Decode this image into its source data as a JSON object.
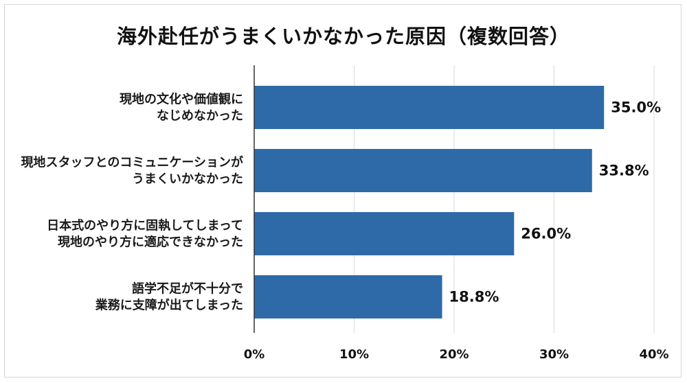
{
  "chart_data": {
    "type": "bar",
    "orientation": "horizontal",
    "title": "海外赴任がうまくいかなかった原因（複数回答）",
    "categories": [
      [
        "現地の文化や価値観に",
        "なじめなかった"
      ],
      [
        "現地スタッフとのコミュニケーションが",
        "うまくいかなかった"
      ],
      [
        "日本式のやり方に固執してしまって",
        "現地のやり方に適応できなかった"
      ],
      [
        "語学不足が不十分で",
        "業務に支障が出てしまった"
      ]
    ],
    "values": [
      35.0,
      33.8,
      26.0,
      18.8
    ],
    "value_labels": [
      "35.0%",
      "33.8%",
      "26.0%",
      "18.8%"
    ],
    "xlim": [
      0,
      40
    ],
    "ticks": [
      0,
      10,
      20,
      30,
      40
    ],
    "tick_labels": [
      "0%",
      "10%",
      "20%",
      "30%",
      "40%"
    ],
    "bar_color": "#2e6aa8",
    "grid": true
  }
}
